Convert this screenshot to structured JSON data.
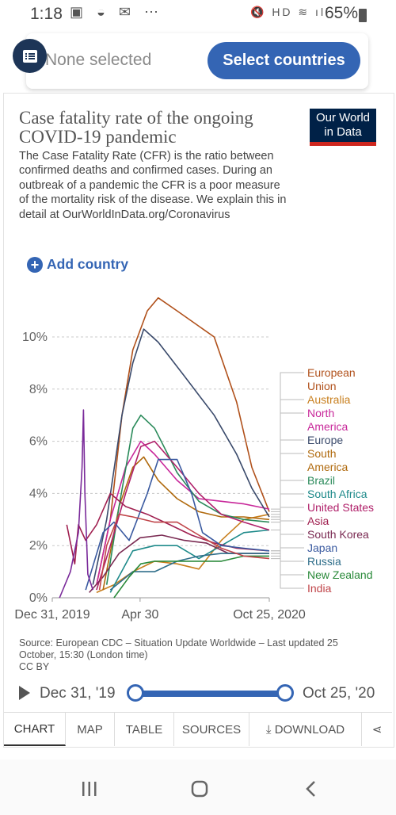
{
  "status_bar": {
    "time": "1:18",
    "left_icons": "▣ ◒ ✉ ⋯",
    "right_icons": "🔇 HD ≋ ıll",
    "battery": "65%"
  },
  "selector": {
    "placeholder": "None selected",
    "button_label": "Select countries",
    "list_icon": "list-icon"
  },
  "chart": {
    "title": "Case fatality rate of the ongoing COVID-19 pandemic",
    "subtitle": "The Case Fatality Rate (CFR) is the ratio between confirmed deaths and confirmed cases. During an outbreak of a pandemic the CFR is a poor measure of the mortality risk of the disease. We explain this in detail at OurWorldInData.org/Coronavirus",
    "logo_line1": "Our World",
    "logo_line2": "in Data",
    "add_country": "Add country",
    "source": "Source: European CDC – Situation Update Worldwide – Last updated 25 October, 15:30 (London time)",
    "license": "CC BY"
  },
  "chart_data": {
    "type": "line",
    "x_ticks": [
      "Dec 31, 2019",
      "Apr 30",
      "Oct 25, 2020"
    ],
    "y_ticks": [
      "0%",
      "2%",
      "4%",
      "6%",
      "8%",
      "10%"
    ],
    "ylim": [
      0,
      10
    ],
    "x_start": "2019-12-31",
    "x_end": "2020-10-25",
    "grid": "horizontal dashed",
    "legend": "right, labels at line ends",
    "series": [
      {
        "name": "European Union",
        "color": "#b0501a",
        "label_lines": [
          "European",
          "Union"
        ],
        "points": [
          [
            "2020-03-01",
            0.5
          ],
          [
            "2020-03-20",
            3
          ],
          [
            "2020-04-05",
            7
          ],
          [
            "2020-04-20",
            9.5
          ],
          [
            "2020-05-10",
            11
          ],
          [
            "2020-05-25",
            11.5
          ],
          [
            "2020-06-20",
            11
          ],
          [
            "2020-08-10",
            10
          ],
          [
            "2020-09-10",
            7.5
          ],
          [
            "2020-10-01",
            5
          ],
          [
            "2020-10-25",
            3.3
          ]
        ]
      },
      {
        "name": "Australia",
        "color": "#c87f1e",
        "label_lines": [
          "Australia"
        ],
        "points": [
          [
            "2020-03-01",
            0.2
          ],
          [
            "2020-03-25",
            0.5
          ],
          [
            "2020-04-20",
            1.0
          ],
          [
            "2020-05-20",
            1.4
          ],
          [
            "2020-06-20",
            1.3
          ],
          [
            "2020-07-20",
            1.1
          ],
          [
            "2020-08-20",
            2.2
          ],
          [
            "2020-09-20",
            3.0
          ],
          [
            "2020-10-25",
            3.2
          ]
        ]
      },
      {
        "name": "North America",
        "color": "#c8289a",
        "label_lines": [
          "North",
          "America"
        ],
        "points": [
          [
            "2020-03-01",
            0.5
          ],
          [
            "2020-03-20",
            3
          ],
          [
            "2020-04-10",
            5
          ],
          [
            "2020-05-01",
            6
          ],
          [
            "2020-05-20",
            5.5
          ],
          [
            "2020-06-20",
            4.5
          ],
          [
            "2020-07-20",
            3.8
          ],
          [
            "2020-08-20",
            3.7
          ],
          [
            "2020-09-20",
            3.6
          ],
          [
            "2020-10-25",
            3.4
          ]
        ]
      },
      {
        "name": "Europe",
        "color": "#3a4a6b",
        "label_lines": [
          "Europe"
        ],
        "points": [
          [
            "2020-02-25",
            0.5
          ],
          [
            "2020-03-15",
            3
          ],
          [
            "2020-04-05",
            7
          ],
          [
            "2020-04-20",
            9
          ],
          [
            "2020-05-05",
            10.3
          ],
          [
            "2020-05-25",
            9.8
          ],
          [
            "2020-06-30",
            8.5
          ],
          [
            "2020-08-10",
            7
          ],
          [
            "2020-09-10",
            5.5
          ],
          [
            "2020-10-01",
            4.2
          ],
          [
            "2020-10-25",
            3.1
          ]
        ]
      },
      {
        "name": "South America",
        "color": "#b06a0e",
        "label_lines": [
          "South",
          "America"
        ],
        "points": [
          [
            "2020-03-10",
            0.3
          ],
          [
            "2020-04-01",
            3.5
          ],
          [
            "2020-04-20",
            5
          ],
          [
            "2020-05-05",
            5.4
          ],
          [
            "2020-05-25",
            4.5
          ],
          [
            "2020-06-20",
            3.8
          ],
          [
            "2020-07-20",
            3.3
          ],
          [
            "2020-08-20",
            3.1
          ],
          [
            "2020-09-20",
            3.1
          ],
          [
            "2020-10-25",
            3.0
          ]
        ]
      },
      {
        "name": "Brazil",
        "color": "#2a8a5a",
        "label_lines": [
          "Brazil"
        ],
        "points": [
          [
            "2020-03-15",
            0.5
          ],
          [
            "2020-04-01",
            3.5
          ],
          [
            "2020-04-20",
            6.5
          ],
          [
            "2020-05-01",
            7.0
          ],
          [
            "2020-05-20",
            6.5
          ],
          [
            "2020-06-20",
            4.8
          ],
          [
            "2020-07-20",
            3.7
          ],
          [
            "2020-08-20",
            3.2
          ],
          [
            "2020-09-20",
            3.0
          ],
          [
            "2020-10-25",
            2.9
          ]
        ]
      },
      {
        "name": "South Africa",
        "color": "#1e8a8a",
        "label_lines": [
          "South Africa"
        ],
        "points": [
          [
            "2020-03-20",
            0.2
          ],
          [
            "2020-04-20",
            1.8
          ],
          [
            "2020-05-20",
            2.0
          ],
          [
            "2020-06-20",
            2.0
          ],
          [
            "2020-07-20",
            1.5
          ],
          [
            "2020-08-20",
            2.0
          ],
          [
            "2020-09-20",
            2.5
          ],
          [
            "2020-10-25",
            2.6
          ]
        ]
      },
      {
        "name": "United States",
        "color": "#b0206a",
        "label_lines": [
          "United States"
        ],
        "points": [
          [
            "2020-03-01",
            0.3
          ],
          [
            "2020-03-20",
            2
          ],
          [
            "2020-04-10",
            4
          ],
          [
            "2020-05-01",
            5.8
          ],
          [
            "2020-05-20",
            6.0
          ],
          [
            "2020-06-20",
            5
          ],
          [
            "2020-07-20",
            4
          ],
          [
            "2020-08-20",
            3.2
          ],
          [
            "2020-09-20",
            2.9
          ],
          [
            "2020-10-25",
            2.6
          ]
        ]
      },
      {
        "name": "Asia",
        "color": "#a02050",
        "label_lines": [
          "Asia"
        ],
        "points": [
          [
            "2020-01-20",
            2.8
          ],
          [
            "2020-01-31",
            1.3
          ],
          [
            "2020-02-05",
            2.8
          ],
          [
            "2020-02-15",
            2.2
          ],
          [
            "2020-03-01",
            2.8
          ],
          [
            "2020-03-20",
            4
          ],
          [
            "2020-04-10",
            3.5
          ],
          [
            "2020-05-10",
            3.2
          ],
          [
            "2020-06-10",
            2.8
          ],
          [
            "2020-07-10",
            2.4
          ],
          [
            "2020-08-10",
            2.1
          ],
          [
            "2020-09-10",
            1.9
          ],
          [
            "2020-10-25",
            1.8
          ]
        ]
      },
      {
        "name": "South Korea",
        "color": "#7a2a52",
        "label_lines": [
          "South Korea"
        ],
        "points": [
          [
            "2020-02-20",
            0.2
          ],
          [
            "2020-03-10",
            0.8
          ],
          [
            "2020-04-01",
            1.7
          ],
          [
            "2020-04-30",
            2.3
          ],
          [
            "2020-05-30",
            2.4
          ],
          [
            "2020-06-30",
            2.2
          ],
          [
            "2020-07-30",
            2.1
          ],
          [
            "2020-08-30",
            1.7
          ],
          [
            "2020-09-30",
            1.7
          ],
          [
            "2020-10-25",
            1.7
          ]
        ]
      },
      {
        "name": "Japan",
        "color": "#3a5aa0",
        "label_lines": [
          "Japan"
        ],
        "points": [
          [
            "2020-02-15",
            0.3
          ],
          [
            "2020-03-10",
            2.5
          ],
          [
            "2020-03-25",
            2.9
          ],
          [
            "2020-04-15",
            2.2
          ],
          [
            "2020-05-10",
            4
          ],
          [
            "2020-05-25",
            5.3
          ],
          [
            "2020-06-20",
            5.3
          ],
          [
            "2020-07-10",
            4.0
          ],
          [
            "2020-07-25",
            2.5
          ],
          [
            "2020-08-20",
            2.0
          ],
          [
            "2020-09-20",
            1.9
          ],
          [
            "2020-10-25",
            1.8
          ]
        ]
      },
      {
        "name": "Russia",
        "color": "#2f6e8a",
        "label_lines": [
          "Russia"
        ],
        "points": [
          [
            "2020-03-20",
            0.3
          ],
          [
            "2020-04-20",
            1.0
          ],
          [
            "2020-05-20",
            1.0
          ],
          [
            "2020-06-20",
            1.4
          ],
          [
            "2020-07-20",
            1.6
          ],
          [
            "2020-08-20",
            1.7
          ],
          [
            "2020-09-20",
            1.7
          ],
          [
            "2020-10-25",
            1.7
          ]
        ]
      },
      {
        "name": "New Zealand",
        "color": "#2a8a3a",
        "label_lines": [
          "New Zealand"
        ],
        "points": [
          [
            "2020-03-25",
            0.0
          ],
          [
            "2020-04-15",
            0.8
          ],
          [
            "2020-05-01",
            1.3
          ],
          [
            "2020-05-20",
            1.4
          ],
          [
            "2020-06-20",
            1.4
          ],
          [
            "2020-08-20",
            1.4
          ],
          [
            "2020-09-20",
            1.6
          ],
          [
            "2020-10-25",
            1.6
          ]
        ]
      },
      {
        "name": "India",
        "color": "#c0454a",
        "label_lines": [
          "India"
        ],
        "points": [
          [
            "2020-03-05",
            0.3
          ],
          [
            "2020-03-15",
            2.0
          ],
          [
            "2020-04-01",
            3.2
          ],
          [
            "2020-04-20",
            3.1
          ],
          [
            "2020-05-20",
            2.9
          ],
          [
            "2020-06-20",
            2.9
          ],
          [
            "2020-07-20",
            2.4
          ],
          [
            "2020-08-20",
            1.9
          ],
          [
            "2020-09-20",
            1.6
          ],
          [
            "2020-10-25",
            1.5
          ]
        ]
      },
      {
        "name": "",
        "color": "#7a2a9a",
        "label_lines": [],
        "points": [
          [
            "2020-01-10",
            0.0
          ],
          [
            "2020-01-25",
            1.0
          ],
          [
            "2020-02-05",
            2.5
          ],
          [
            "2020-02-10",
            5.0
          ],
          [
            "2020-02-12",
            7.2
          ],
          [
            "2020-02-14",
            4.0
          ],
          [
            "2020-02-18",
            0.9
          ],
          [
            "2020-02-25",
            0.3
          ]
        ]
      }
    ]
  },
  "timeline": {
    "start_label": "Dec 31, '19",
    "end_label": "Oct 25, '20",
    "play_icon": "play-icon"
  },
  "tabs": [
    {
      "label": "CHART",
      "active": true
    },
    {
      "label": "MAP",
      "active": false
    },
    {
      "label": "TABLE",
      "active": false
    },
    {
      "label": "SOURCES",
      "active": false
    },
    {
      "label": "⤓ DOWNLOAD",
      "active": false
    },
    {
      "label": "⋖",
      "active": false
    }
  ],
  "nav_bar": {
    "recents": "recents-icon",
    "home": "home-icon",
    "back": "back-icon"
  }
}
